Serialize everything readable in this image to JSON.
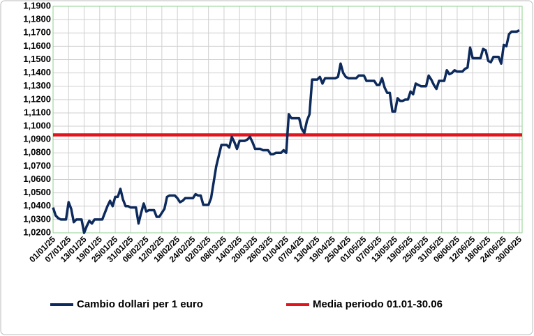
{
  "chart_data": {
    "type": "line",
    "categories": [
      "01/01/25",
      null,
      null,
      null,
      null,
      null,
      "07/01/25",
      null,
      null,
      null,
      null,
      null,
      "13/01/25",
      null,
      null,
      null,
      null,
      null,
      "19/01/25",
      null,
      null,
      null,
      null,
      null,
      "25/01/25",
      null,
      null,
      null,
      null,
      null,
      "31/01/25",
      null,
      null,
      null,
      null,
      null,
      "06/02/25",
      null,
      null,
      null,
      null,
      null,
      "12/02/25",
      null,
      null,
      null,
      null,
      null,
      "18/02/25",
      null,
      null,
      null,
      null,
      null,
      "24/02/25",
      null,
      null,
      null,
      null,
      null,
      "02/03/25",
      null,
      null,
      null,
      null,
      null,
      "08/03/25",
      null,
      null,
      null,
      null,
      null,
      "14/03/25",
      null,
      null,
      null,
      null,
      null,
      "20/03/25",
      null,
      null,
      null,
      null,
      null,
      "26/03/25",
      null,
      null,
      null,
      null,
      null,
      "01/04/25",
      null,
      null,
      null,
      null,
      null,
      "07/04/25",
      null,
      null,
      null,
      null,
      null,
      "13/04/25",
      null,
      null,
      null,
      null,
      null,
      "19/04/25",
      null,
      null,
      null,
      null,
      null,
      "25/04/25",
      null,
      null,
      null,
      null,
      null,
      "01/05/25",
      null,
      null,
      null,
      null,
      null,
      "07/05/25",
      null,
      null,
      null,
      null,
      null,
      "13/05/25",
      null,
      null,
      null,
      null,
      null,
      "19/05/25",
      null,
      null,
      null,
      null,
      null,
      "25/05/25",
      null,
      null,
      null,
      null,
      null,
      "31/05/25",
      null,
      null,
      null,
      null,
      null,
      "06/06/25",
      null,
      null,
      null,
      null,
      null,
      "12/06/25",
      null,
      null,
      null,
      null,
      null,
      "18/06/25",
      null,
      null,
      null,
      null,
      null,
      "24/06/25",
      null,
      null,
      null,
      null,
      null,
      "30/06/25"
    ],
    "series": [
      {
        "name": "Cambio dollari per 1 euro",
        "color": "#0d2a5c",
        "values": [
          1.039,
          1.033,
          1.031,
          1.03,
          1.03,
          1.03,
          1.043,
          1.038,
          1.028,
          1.03,
          1.03,
          1.03,
          1.02,
          1.025,
          1.029,
          1.027,
          1.03,
          1.03,
          1.03,
          1.03,
          1.035,
          1.04,
          1.044,
          1.04,
          1.047,
          1.047,
          1.053,
          1.045,
          1.04,
          1.04,
          1.039,
          1.039,
          1.039,
          1.027,
          1.035,
          1.042,
          1.036,
          1.037,
          1.037,
          1.037,
          1.032,
          1.032,
          1.035,
          1.038,
          1.047,
          1.048,
          1.048,
          1.048,
          1.046,
          1.043,
          1.044,
          1.046,
          1.046,
          1.046,
          1.046,
          1.049,
          1.048,
          1.048,
          1.041,
          1.041,
          1.041,
          1.046,
          1.058,
          1.07,
          1.078,
          1.086,
          1.086,
          1.086,
          1.084,
          1.092,
          1.088,
          1.083,
          1.089,
          1.089,
          1.089,
          1.09,
          1.092,
          1.088,
          1.083,
          1.083,
          1.083,
          1.082,
          1.082,
          1.082,
          1.079,
          1.079,
          1.08,
          1.08,
          1.08,
          1.082,
          1.08,
          1.109,
          1.106,
          1.106,
          1.106,
          1.106,
          1.098,
          1.095,
          1.104,
          1.109,
          1.135,
          1.135,
          1.135,
          1.137,
          1.132,
          1.136,
          1.136,
          1.136,
          1.136,
          1.136,
          1.137,
          1.147,
          1.14,
          1.137,
          1.136,
          1.136,
          1.136,
          1.136,
          1.138,
          1.138,
          1.138,
          1.134,
          1.134,
          1.134,
          1.134,
          1.131,
          1.131,
          1.136,
          1.129,
          1.125,
          1.125,
          1.111,
          1.111,
          1.121,
          1.119,
          1.119,
          1.12,
          1.12,
          1.126,
          1.124,
          1.132,
          1.131,
          1.13,
          1.13,
          1.13,
          1.138,
          1.135,
          1.131,
          1.128,
          1.134,
          1.134,
          1.134,
          1.142,
          1.139,
          1.14,
          1.142,
          1.141,
          1.141,
          1.141,
          1.143,
          1.144,
          1.159,
          1.151,
          1.151,
          1.151,
          1.151,
          1.158,
          1.157,
          1.149,
          1.148,
          1.152,
          1.152,
          1.152,
          1.147,
          1.161,
          1.16,
          1.169,
          1.171,
          1.171,
          1.171,
          1.172
        ]
      }
    ],
    "reference_lines": [
      {
        "name": "Media periodo 01.01-30.06",
        "color": "#e3141b",
        "value": 1.0935
      }
    ],
    "ylim": [
      1.02,
      1.19
    ],
    "yticks": [
      {
        "value": 1.02,
        "label": "1,0200"
      },
      {
        "value": 1.03,
        "label": "1,0300"
      },
      {
        "value": 1.04,
        "label": "1,0400"
      },
      {
        "value": 1.05,
        "label": "1,0500"
      },
      {
        "value": 1.06,
        "label": "1,0600"
      },
      {
        "value": 1.07,
        "label": "1,0700"
      },
      {
        "value": 1.08,
        "label": "1,0800"
      },
      {
        "value": 1.09,
        "label": "1,0900"
      },
      {
        "value": 1.1,
        "label": "1,1000"
      },
      {
        "value": 1.11,
        "label": "1,1100"
      },
      {
        "value": 1.12,
        "label": "1,1200"
      },
      {
        "value": 1.13,
        "label": "1,1300"
      },
      {
        "value": 1.14,
        "label": "1,1400"
      },
      {
        "value": 1.15,
        "label": "1,1500"
      },
      {
        "value": 1.16,
        "label": "1,1600"
      },
      {
        "value": 1.17,
        "label": "1,1700"
      },
      {
        "value": 1.18,
        "label": "1,1800"
      },
      {
        "value": 1.19,
        "label": "1,1900"
      }
    ],
    "grid": true
  }
}
